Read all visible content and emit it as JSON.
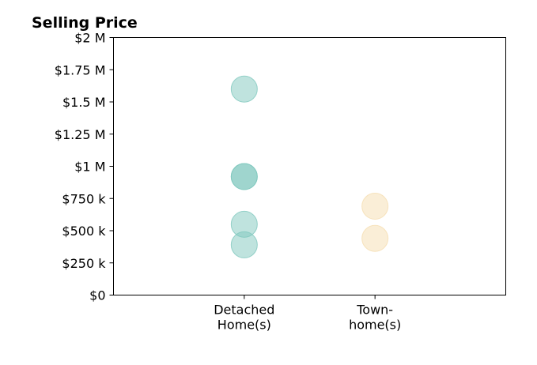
{
  "chart_data": {
    "type": "scatter",
    "title": "Selling Price",
    "xlabel": "",
    "ylabel": "",
    "categories": [
      [
        "Detached",
        "Home(s)"
      ],
      [
        "Town-",
        "home(s)"
      ]
    ],
    "x_range": [
      0,
      3
    ],
    "ylim": [
      0,
      2000000
    ],
    "y_ticks": [
      {
        "value": 0,
        "label": "$0"
      },
      {
        "value": 250000,
        "label": "$250 k"
      },
      {
        "value": 500000,
        "label": "$500 k"
      },
      {
        "value": 750000,
        "label": "$750 k"
      },
      {
        "value": 1000000,
        "label": "$1 M"
      },
      {
        "value": 1250000,
        "label": "$1.25 M"
      },
      {
        "value": 1500000,
        "label": "$1.5 M"
      },
      {
        "value": 1750000,
        "label": "$1.75 M"
      },
      {
        "value": 2000000,
        "label": "$2 M"
      }
    ],
    "grid": false,
    "series": [
      {
        "category_index": 0,
        "color": "#7fc8be",
        "values": [
          1600000,
          920000,
          920000,
          550000,
          390000
        ]
      },
      {
        "category_index": 1,
        "color": "#f5ddb0",
        "values": [
          690000,
          440000
        ]
      }
    ]
  }
}
